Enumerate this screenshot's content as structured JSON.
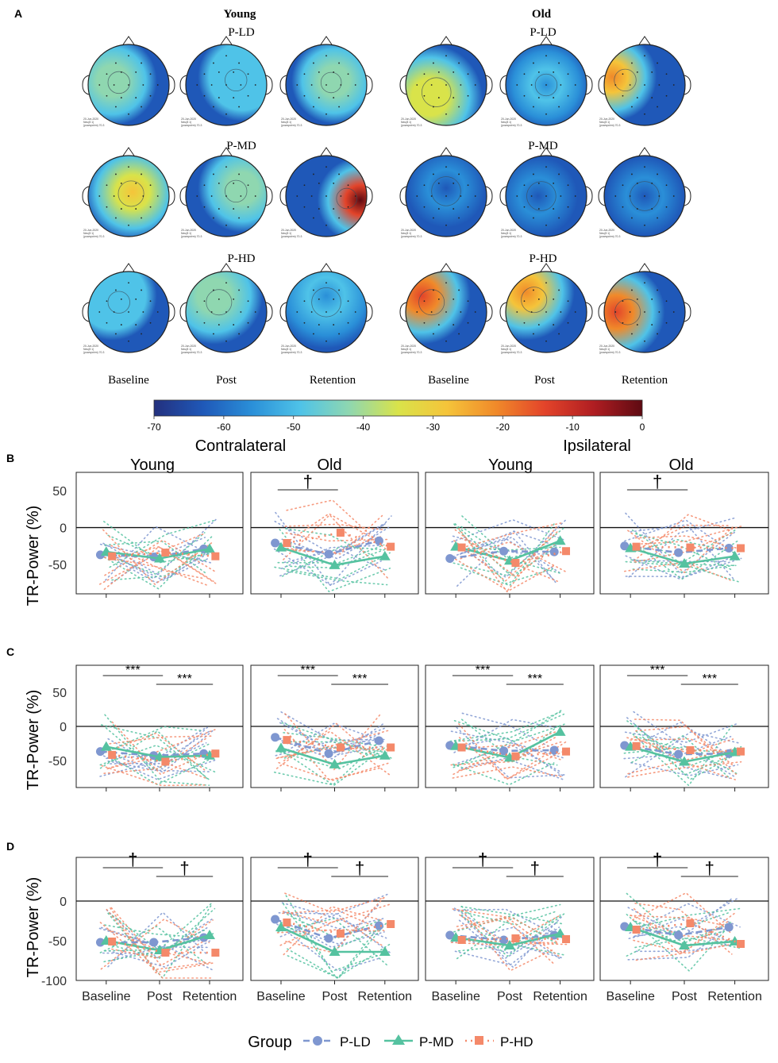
{
  "panel_letters": [
    "A",
    "B",
    "C",
    "D"
  ],
  "topomaps": {
    "groups": [
      {
        "name": "Young",
        "rows": [
          {
            "label": "P-LD",
            "hotspots": [
              [
                0.3,
                0.45,
                0.3,
                0.4
              ],
              [
                0.7,
                0.4,
                0.3,
                0.25
              ],
              [
                0.6,
                0.45,
                0.28,
                0.35
              ]
            ]
          },
          {
            "label": "P-MD",
            "hotspots": [
              [
                0.55,
                0.45,
                0.35,
                0.55
              ],
              [
                0.7,
                0.4,
                0.3,
                0.4
              ],
              [
                0.92,
                0.55,
                0.28,
                0.95
              ]
            ]
          },
          {
            "label": "P-HD",
            "hotspots": [
              [
                0.3,
                0.3,
                0.3,
                0.25
              ],
              [
                0.35,
                0.3,
                0.35,
                0.35
              ],
              [
                0.5,
                0.3,
                0.4,
                0.15
              ]
            ]
          }
        ]
      },
      {
        "name": "Old",
        "rows": [
          {
            "label": "P-LD",
            "hotspots": [
              [
                0.3,
                0.65,
                0.4,
                0.5
              ],
              [
                0.5,
                0.5,
                0.3,
                0.15
              ],
              [
                0.1,
                0.4,
                0.3,
                0.7
              ]
            ]
          },
          {
            "label": "P-MD",
            "hotspots": [
              [
                0.5,
                0.4,
                0.4,
                0.1
              ],
              [
                0.4,
                0.5,
                0.4,
                0.08
              ],
              [
                0.5,
                0.5,
                0.4,
                0.12
              ]
            ]
          },
          {
            "label": "P-HD",
            "hotspots": [
              [
                0.2,
                0.3,
                0.35,
                0.75
              ],
              [
                0.25,
                0.25,
                0.35,
                0.7
              ],
              [
                0.15,
                0.5,
                0.35,
                0.75
              ]
            ]
          }
        ]
      }
    ],
    "columns": [
      "Baseline",
      "Post",
      "Retention"
    ],
    "electrode_caption": [
      "20-Jun-2020",
      "Neu(8 1)",
      "(powspctrm) 70-3"
    ]
  },
  "colorbar": {
    "ticks": [
      "-70",
      "-60",
      "-50",
      "-40",
      "-30",
      "-20",
      "-10",
      "0"
    ],
    "stops": [
      "#23307e",
      "#1f58b8",
      "#2a8fd8",
      "#4fc3e8",
      "#8fd7b0",
      "#d9e34a",
      "#f5c43a",
      "#f08a2a",
      "#e3442a",
      "#b01e22",
      "#5e0a12"
    ]
  },
  "section_labels": {
    "contralateral": "Contralateral",
    "ipsilateral": "Ipsilateral"
  },
  "facet_titles": [
    "Young",
    "Old",
    "Young",
    "Old"
  ],
  "colors": {
    "P-LD": "#7f97d0",
    "P-MD": "#55c2a0",
    "P-HD": "#f4896a"
  },
  "chart_data": [
    {
      "type": "line",
      "panel": "B",
      "ylabel": "TR-Power (%)",
      "ylim": [
        -90,
        75
      ],
      "yticks": [
        50,
        0,
        -50
      ],
      "categories": [
        "Baseline",
        "Post",
        "Retention"
      ],
      "facets": [
        {
          "title": "Young",
          "series": [
            {
              "name": "P-LD",
              "values": [
                -37,
                -40,
                -29
              ]
            },
            {
              "name": "P-MD",
              "values": [
                -33,
                -42,
                -29
              ]
            },
            {
              "name": "P-HD",
              "values": [
                -39,
                -34,
                -39
              ]
            }
          ],
          "annotations": []
        },
        {
          "title": "Old",
          "series": [
            {
              "name": "P-LD",
              "values": [
                -21,
                -36,
                -18
              ]
            },
            {
              "name": "P-MD",
              "values": [
                -27,
                -51,
                -39
              ]
            },
            {
              "name": "P-HD",
              "values": [
                -21,
                -7,
                -26
              ]
            }
          ],
          "annotations": [
            {
              "text": "†",
              "span": [
                0,
                1
              ]
            }
          ]
        },
        {
          "title": "Young",
          "series": [
            {
              "name": "P-LD",
              "values": [
                -42,
                -32,
                -33
              ]
            },
            {
              "name": "P-MD",
              "values": [
                -26,
                -45,
                -18
              ]
            },
            {
              "name": "P-HD",
              "values": [
                -27,
                -48,
                -32
              ]
            }
          ],
          "annotations": []
        },
        {
          "title": "Old",
          "series": [
            {
              "name": "P-LD",
              "values": [
                -25,
                -34,
                -28
              ]
            },
            {
              "name": "P-MD",
              "values": [
                -28,
                -49,
                -39
              ]
            },
            {
              "name": "P-HD",
              "values": [
                -26,
                -27,
                -28
              ]
            }
          ],
          "annotations": [
            {
              "text": "†",
              "span": [
                0,
                1
              ]
            }
          ]
        }
      ]
    },
    {
      "type": "line",
      "panel": "C",
      "ylabel": "TR-Power (%)",
      "ylim": [
        -90,
        90
      ],
      "yticks": [
        50,
        0,
        -50
      ],
      "categories": [
        "Baseline",
        "Post",
        "Retention"
      ],
      "facets": [
        {
          "title": "",
          "series": [
            {
              "name": "P-LD",
              "values": [
                -37,
                -43,
                -40
              ]
            },
            {
              "name": "P-MD",
              "values": [
                -30,
                -45,
                -43
              ]
            },
            {
              "name": "P-HD",
              "values": [
                -42,
                -52,
                -40
              ]
            }
          ],
          "annotations": [
            {
              "text": "***",
              "span": [
                0,
                1
              ]
            },
            {
              "text": "***",
              "span": [
                1,
                2
              ]
            }
          ]
        },
        {
          "title": "",
          "series": [
            {
              "name": "P-LD",
              "values": [
                -16,
                -40,
                -21
              ]
            },
            {
              "name": "P-MD",
              "values": [
                -32,
                -56,
                -43
              ]
            },
            {
              "name": "P-HD",
              "values": [
                -20,
                -31,
                -31
              ]
            }
          ],
          "annotations": [
            {
              "text": "***",
              "span": [
                0,
                1
              ]
            },
            {
              "text": "***",
              "span": [
                1,
                2
              ]
            }
          ]
        },
        {
          "title": "",
          "series": [
            {
              "name": "P-LD",
              "values": [
                -28,
                -36,
                -35
              ]
            },
            {
              "name": "P-MD",
              "values": [
                -29,
                -46,
                -8
              ]
            },
            {
              "name": "P-HD",
              "values": [
                -31,
                -44,
                -37
              ]
            }
          ],
          "annotations": [
            {
              "text": "***",
              "span": [
                0,
                1
              ]
            },
            {
              "text": "***",
              "span": [
                1,
                2
              ]
            }
          ]
        },
        {
          "title": "",
          "series": [
            {
              "name": "P-LD",
              "values": [
                -28,
                -41,
                -40
              ]
            },
            {
              "name": "P-MD",
              "values": [
                -30,
                -52,
                -38
              ]
            },
            {
              "name": "P-HD",
              "values": [
                -29,
                -35,
                -37
              ]
            }
          ],
          "annotations": [
            {
              "text": "***",
              "span": [
                0,
                1
              ]
            },
            {
              "text": "***",
              "span": [
                1,
                2
              ]
            }
          ]
        }
      ]
    },
    {
      "type": "line",
      "panel": "D",
      "ylabel": "TR-Power (%)",
      "ylim": [
        -100,
        55
      ],
      "yticks": [
        0,
        -50,
        -100
      ],
      "categories": [
        "Baseline",
        "Post",
        "Retention"
      ],
      "facets": [
        {
          "title": "",
          "series": [
            {
              "name": "P-LD",
              "values": [
                -52,
                -52,
                -46
              ]
            },
            {
              "name": "P-MD",
              "values": [
                -50,
                -62,
                -43
              ]
            },
            {
              "name": "P-HD",
              "values": [
                -51,
                -65,
                -65
              ]
            }
          ],
          "annotations": [
            {
              "text": "†",
              "span": [
                0,
                1
              ]
            },
            {
              "text": "†",
              "span": [
                1,
                2
              ]
            }
          ]
        },
        {
          "title": "",
          "series": [
            {
              "name": "P-LD",
              "values": [
                -23,
                -47,
                -31
              ]
            },
            {
              "name": "P-MD",
              "values": [
                -33,
                -64,
                -64
              ]
            },
            {
              "name": "P-HD",
              "values": [
                -27,
                -41,
                -29
              ]
            }
          ],
          "annotations": [
            {
              "text": "†",
              "span": [
                0,
                1
              ]
            },
            {
              "text": "†",
              "span": [
                1,
                2
              ]
            }
          ]
        },
        {
          "title": "",
          "series": [
            {
              "name": "P-LD",
              "values": [
                -43,
                -49,
                -43
              ]
            },
            {
              "name": "P-MD",
              "values": [
                -46,
                -56,
                -41
              ]
            },
            {
              "name": "P-HD",
              "values": [
                -49,
                -47,
                -48
              ]
            }
          ],
          "annotations": [
            {
              "text": "†",
              "span": [
                0,
                1
              ]
            },
            {
              "text": "†",
              "span": [
                1,
                2
              ]
            }
          ]
        },
        {
          "title": "",
          "series": [
            {
              "name": "P-LD",
              "values": [
                -32,
                -43,
                -33
              ]
            },
            {
              "name": "P-MD",
              "values": [
                -33,
                -56,
                -51
              ]
            },
            {
              "name": "P-HD",
              "values": [
                -36,
                -28,
                -54
              ]
            }
          ],
          "annotations": [
            {
              "text": "†",
              "span": [
                0,
                1
              ]
            },
            {
              "text": "†",
              "span": [
                1,
                2
              ]
            }
          ]
        }
      ]
    }
  ],
  "legend": {
    "title": "Group",
    "items": [
      "P-LD",
      "P-MD",
      "P-HD"
    ]
  }
}
